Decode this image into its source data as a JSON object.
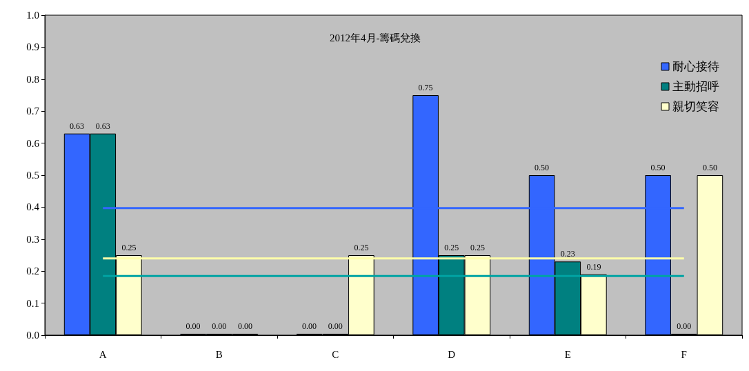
{
  "chart_data": {
    "type": "bar",
    "title": "2012年4月-籌碼兌換",
    "categories": [
      "A",
      "B",
      "C",
      "D",
      "E",
      "F"
    ],
    "series": [
      {
        "name": "耐心接待",
        "color": "#3366ff",
        "values": [
          0.63,
          0,
          0,
          0.75,
          0.5,
          0.5
        ],
        "value_labels": [
          "0.63",
          "0.00",
          "0.00",
          "0.75",
          "0.50",
          "0.50"
        ]
      },
      {
        "name": "主動招呼",
        "color": "#008080",
        "values": [
          0.63,
          0,
          0,
          0.25,
          0.23,
          0
        ],
        "value_labels": [
          "0.63",
          "0.00",
          "0.00",
          "0.25",
          "0.23",
          "0.00"
        ]
      },
      {
        "name": "親切笑容",
        "color": "#ffffcc",
        "values": [
          0.25,
          0,
          0.25,
          0.25,
          0.19,
          0.5
        ],
        "value_labels": [
          "0.25",
          "0.00",
          "0.25",
          "0.25",
          "0.19",
          "0.50"
        ]
      },
      {
        "type": "line",
        "color": "#3366ff",
        "values": [
          0.397,
          0.397,
          0.397,
          0.397,
          0.397,
          0.397
        ]
      },
      {
        "type": "line",
        "color": "#00a3a3",
        "values": [
          0.185,
          0.185,
          0.185,
          0.185,
          0.185,
          0.185
        ]
      },
      {
        "type": "line",
        "color": "#ffffaa",
        "values": [
          0.24,
          0.24,
          0.24,
          0.24,
          0.24,
          0.24
        ]
      }
    ],
    "ylim": [
      0,
      1
    ],
    "yticks": [
      {
        "value": 0,
        "label": "0.0"
      },
      {
        "value": 0.1,
        "label": "0.1"
      },
      {
        "value": 0.2,
        "label": "0.2"
      },
      {
        "value": 0.3,
        "label": "0.3"
      },
      {
        "value": 0.4,
        "label": "0.4"
      },
      {
        "value": 0.5,
        "label": "0.5"
      },
      {
        "value": 0.6,
        "label": "0.6"
      },
      {
        "value": 0.7,
        "label": "0.7"
      },
      {
        "value": 0.8,
        "label": "0.8"
      },
      {
        "value": 0.9,
        "label": "0.9"
      },
      {
        "value": 1,
        "label": "1.0"
      }
    ],
    "grid": false,
    "legend": "top right"
  }
}
